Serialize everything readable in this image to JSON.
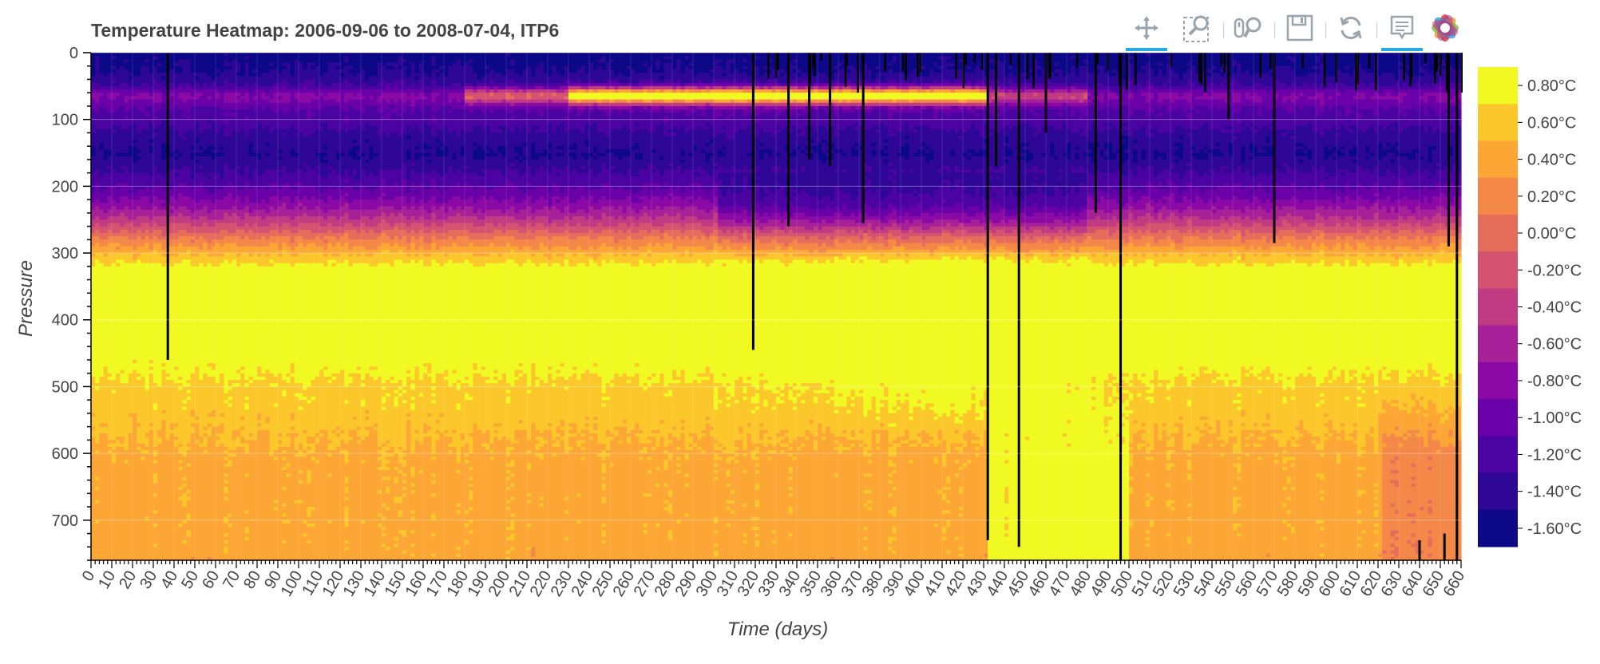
{
  "chart_data": {
    "type": "heatmap",
    "title": "Temperature Heatmap: 2006-09-06 to 2008-07-04, ITP6",
    "xlabel": "Time (days)",
    "ylabel": "Pressure",
    "xlim": [
      0,
      660
    ],
    "ylim": [
      760,
      0
    ],
    "x_ticks": [
      "0",
      "10",
      "20",
      "30",
      "40",
      "50",
      "60",
      "70",
      "80",
      "90",
      "100",
      "110",
      "120",
      "130",
      "140",
      "150",
      "160",
      "170",
      "180",
      "190",
      "200",
      "210",
      "220",
      "230",
      "240",
      "250",
      "260",
      "270",
      "280",
      "290",
      "300",
      "310",
      "320",
      "330",
      "340",
      "350",
      "360",
      "370",
      "380",
      "390",
      "400",
      "410",
      "420",
      "430",
      "440",
      "450",
      "460",
      "470",
      "480",
      "490",
      "500",
      "510",
      "520",
      "530",
      "540",
      "550",
      "560",
      "570",
      "580",
      "590",
      "600",
      "610",
      "620",
      "630",
      "640",
      "650",
      "660"
    ],
    "y_ticks": [
      "0",
      "100",
      "200",
      "300",
      "400",
      "500",
      "600",
      "700"
    ],
    "colorbar": {
      "colors": [
        "#0c0887",
        "#2e0796",
        "#4b03a1",
        "#6a00a8",
        "#8b0aa5",
        "#a62098",
        "#c03b82",
        "#d55370",
        "#e66c5c",
        "#f48849",
        "#fca636",
        "#fbc72a",
        "#f0f921"
      ],
      "labels": [
        "-1.60°C",
        "-1.40°C",
        "-1.20°C",
        "-1.00°C",
        "-0.80°C",
        "-0.60°C",
        "-0.40°C",
        "-0.20°C",
        "0.00°C",
        "0.20°C",
        "0.40°C",
        "0.60°C",
        "0.80°C"
      ],
      "range": [
        -1.7,
        0.9
      ]
    },
    "profile_summary": {
      "pressure_levels": [
        0,
        25,
        50,
        75,
        100,
        125,
        150,
        175,
        200,
        225,
        250,
        275,
        300,
        325,
        350,
        375,
        400,
        425,
        450,
        475,
        500,
        525,
        550,
        575,
        600,
        625,
        650,
        675,
        700,
        725,
        750
      ],
      "typical_temperature": [
        -1.6,
        -1.5,
        -1.3,
        -1.1,
        -1.2,
        -1.4,
        -1.5,
        -1.3,
        -1.1,
        -0.8,
        -0.4,
        0.1,
        0.5,
        0.85,
        0.85,
        0.85,
        0.85,
        0.85,
        0.8,
        0.7,
        0.6,
        0.6,
        0.55,
        0.5,
        0.45,
        0.42,
        0.42,
        0.42,
        0.42,
        0.42,
        0.4
      ]
    },
    "grid": true
  },
  "toolbar": {
    "tools": [
      "pan-icon",
      "box-zoom-icon",
      "wheel-zoom-icon",
      "save-icon",
      "reset-icon",
      "hover-icon",
      "bokeh-logo-icon"
    ]
  }
}
